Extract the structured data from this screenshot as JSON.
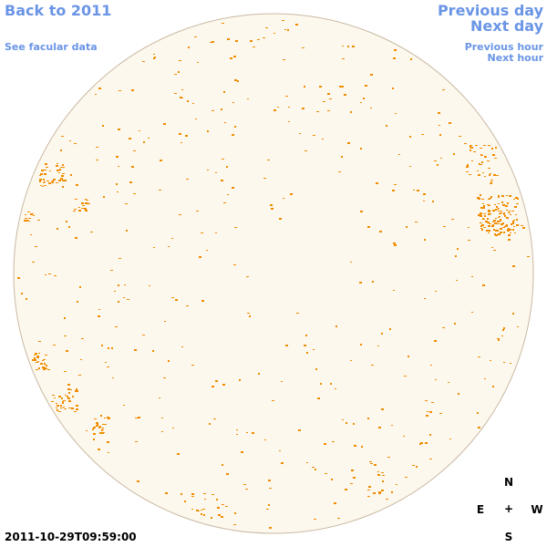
{
  "nav": {
    "back": "Back to 2011",
    "facular": "See facular data",
    "previous_day": "Previous day",
    "next_day": "Next day",
    "previous_hour": "Previous hour",
    "next_hour": "Next hour"
  },
  "timestamp": "2011-10-29T09:59:00",
  "compass": {
    "north": "N",
    "east": "E",
    "center": "+",
    "west": "W",
    "south": "S"
  }
}
